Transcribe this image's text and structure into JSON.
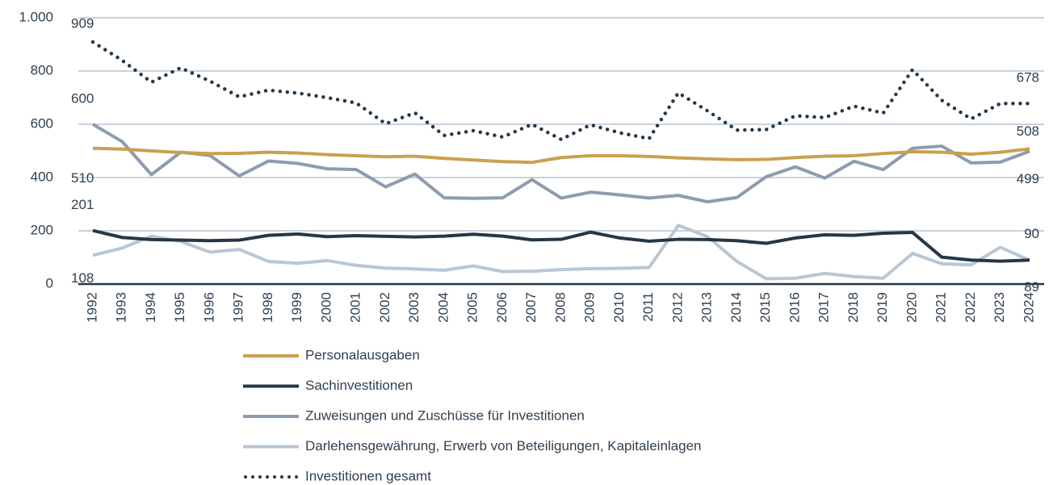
{
  "chart_data": {
    "type": "line",
    "categories": [
      "1992",
      "1993",
      "1994",
      "1995",
      "1996",
      "1997",
      "1998",
      "1999",
      "2000",
      "2001",
      "2002",
      "2003",
      "2004",
      "2005",
      "2006",
      "2007",
      "2008",
      "2009",
      "2010",
      "2011",
      "2012",
      "2013",
      "2014",
      "2015",
      "2016",
      "2017",
      "2018",
      "2019",
      "2020",
      "2021",
      "2022",
      "2023",
      "2024"
    ],
    "series": [
      {
        "name": "Personalausgaben",
        "color": "#c9a04e",
        "style": "solid",
        "values": [
          510,
          507,
          500,
          494,
          490,
          491,
          495,
          492,
          486,
          482,
          478,
          480,
          472,
          466,
          460,
          457,
          475,
          482,
          482,
          479,
          474,
          470,
          467,
          468,
          475,
          480,
          482,
          490,
          497,
          495,
          488,
          495,
          508
        ]
      },
      {
        "name": "Sachinvestitionen",
        "color": "#253746",
        "style": "solid",
        "values": [
          201,
          175,
          167,
          165,
          163,
          165,
          183,
          188,
          178,
          182,
          179,
          177,
          180,
          187,
          180,
          166,
          168,
          195,
          173,
          161,
          168,
          167,
          163,
          153,
          173,
          185,
          183,
          191,
          194,
          101,
          90,
          86,
          90
        ]
      },
      {
        "name": "Zuweisungen und Zuschüsse für Investitionen",
        "color": "#8d9cae",
        "style": "solid",
        "values": [
          600,
          535,
          411,
          495,
          483,
          406,
          462,
          453,
          433,
          430,
          365,
          413,
          324,
          322,
          324,
          392,
          323,
          345,
          335,
          323,
          333,
          309,
          325,
          403,
          440,
          398,
          461,
          430,
          510,
          518,
          455,
          458,
          499
        ]
      },
      {
        "name": "Darlehensgewährung, Erwerb von Beteiligungen, Kapitaleinlagen",
        "color": "#b8c7d5",
        "style": "solid",
        "values": [
          108,
          135,
          180,
          160,
          120,
          130,
          85,
          78,
          88,
          70,
          60,
          57,
          52,
          68,
          47,
          48,
          54,
          58,
          59,
          62,
          220,
          178,
          85,
          20,
          22,
          40,
          28,
          22,
          115,
          76,
          72,
          138,
          89
        ]
      },
      {
        "name": "Investitionen gesamt",
        "color": "#253746",
        "style": "dotted",
        "values": [
          909,
          840,
          758,
          812,
          762,
          703,
          728,
          717,
          700,
          680,
          602,
          643,
          558,
          576,
          552,
          600,
          543,
          598,
          568,
          546,
          718,
          650,
          578,
          580,
          632,
          625,
          668,
          642,
          805,
          690,
          620,
          678,
          678
        ]
      }
    ],
    "ylim": [
      0,
      1000
    ],
    "yticks": [
      0,
      200,
      400,
      600,
      800,
      {
        "value": 1000,
        "label": "1.000"
      }
    ],
    "grid": true
  }
}
